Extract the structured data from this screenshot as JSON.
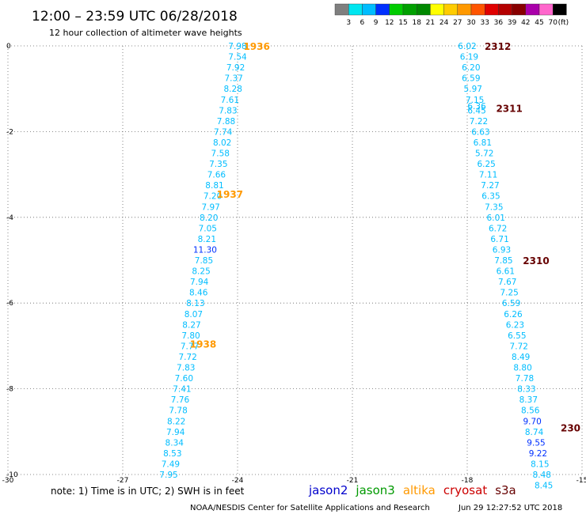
{
  "header": {
    "title": "12:00 – 23:59 UTC 06/28/2018",
    "subtitle": "12 hour collection of altimeter wave heights"
  },
  "colorbar": {
    "unit": "(ft)",
    "bins": [
      {
        "label": "",
        "color": "#7f7f7f"
      },
      {
        "label": "3",
        "color": "#00e6f0"
      },
      {
        "label": "6",
        "color": "#00bdff"
      },
      {
        "label": "9",
        "color": "#0030ff"
      },
      {
        "label": "12",
        "color": "#00cc00"
      },
      {
        "label": "15",
        "color": "#00a000"
      },
      {
        "label": "18",
        "color": "#008800"
      },
      {
        "label": "21",
        "color": "#ffff00"
      },
      {
        "label": "24",
        "color": "#ffcc00"
      },
      {
        "label": "27",
        "color": "#ff9900"
      },
      {
        "label": "30",
        "color": "#ff5500"
      },
      {
        "label": "33",
        "color": "#e00000"
      },
      {
        "label": "36",
        "color": "#b40000"
      },
      {
        "label": "39",
        "color": "#880000"
      },
      {
        "label": "42",
        "color": "#aa00aa"
      },
      {
        "label": "45",
        "color": "#ff66cc"
      },
      {
        "label": "70",
        "color": "#000000"
      }
    ]
  },
  "footer": {
    "note": "note: 1) Time is in UTC; 2) SWH is in feet",
    "credit": "NOAA/NESDIS Center for Satellite Applications and Research",
    "timestamp": "Jun 29 12:27:52 UTC 2018",
    "satellites": [
      {
        "name": "jason2",
        "color": "#0000cc"
      },
      {
        "name": "jason3",
        "color": "#009900"
      },
      {
        "name": "altika",
        "color": "#ff9900"
      },
      {
        "name": "cryosat",
        "color": "#cc0000"
      },
      {
        "name": "s3a",
        "color": "#660000"
      }
    ]
  },
  "chart_data": {
    "type": "scatter",
    "xlim": [
      -30,
      -15
    ],
    "ylim": [
      -10,
      0
    ],
    "xticks": [
      "-30",
      "-27",
      "-24",
      "-21",
      "-18",
      "-15"
    ],
    "yticks": [
      "0",
      "-2",
      "-4",
      "-6",
      "-8",
      "-10"
    ],
    "grid": true,
    "series": [
      {
        "name": "altika",
        "color": "#ff9900",
        "points": [
          {
            "x": -24.0,
            "y": 0.0,
            "label": "7.98"
          },
          {
            "x": -24.0,
            "y": -0.25,
            "label": "7.54"
          },
          {
            "x": -24.05,
            "y": -0.5,
            "label": "7.92"
          },
          {
            "x": -24.1,
            "y": -0.75,
            "label": "7.37"
          },
          {
            "x": -24.12,
            "y": -1.0,
            "label": "8.28"
          },
          {
            "x": -24.2,
            "y": -1.25,
            "label": "7.61"
          },
          {
            "x": -24.25,
            "y": -1.5,
            "label": "7.83"
          },
          {
            "x": -24.3,
            "y": -1.75,
            "label": "7.88"
          },
          {
            "x": -24.38,
            "y": -2.0,
            "label": "7.74"
          },
          {
            "x": -24.4,
            "y": -2.25,
            "label": "8.02"
          },
          {
            "x": -24.45,
            "y": -2.5,
            "label": "7.58"
          },
          {
            "x": -24.5,
            "y": -2.75,
            "label": "7.35"
          },
          {
            "x": -24.55,
            "y": -3.0,
            "label": "7.66"
          },
          {
            "x": -24.6,
            "y": -3.25,
            "label": "8.81"
          },
          {
            "x": -24.65,
            "y": -3.5,
            "label": "7.20"
          },
          {
            "x": -24.7,
            "y": -3.75,
            "label": "7.97"
          },
          {
            "x": -24.75,
            "y": -4.0,
            "label": "8.20"
          },
          {
            "x": -24.78,
            "y": -4.25,
            "label": "7.05"
          },
          {
            "x": -24.8,
            "y": -4.5,
            "label": "8.21"
          },
          {
            "x": -24.85,
            "y": -4.75,
            "label": "11.30"
          },
          {
            "x": -24.88,
            "y": -5.0,
            "label": "7.85"
          },
          {
            "x": -24.95,
            "y": -5.25,
            "label": "8.25"
          },
          {
            "x": -25.0,
            "y": -5.5,
            "label": "7.94"
          },
          {
            "x": -25.02,
            "y": -5.75,
            "label": "8.46"
          },
          {
            "x": -25.1,
            "y": -6.0,
            "label": "8.13"
          },
          {
            "x": -25.15,
            "y": -6.25,
            "label": "8.07"
          },
          {
            "x": -25.2,
            "y": -6.5,
            "label": "8.27"
          },
          {
            "x": -25.22,
            "y": -6.75,
            "label": "7.80"
          },
          {
            "x": -25.25,
            "y": -7.0,
            "label": "7.77"
          },
          {
            "x": -25.3,
            "y": -7.25,
            "label": "7.72"
          },
          {
            "x": -25.35,
            "y": -7.5,
            "label": "7.83"
          },
          {
            "x": -25.4,
            "y": -7.75,
            "label": "7.60"
          },
          {
            "x": -25.45,
            "y": -8.0,
            "label": "7.41"
          },
          {
            "x": -25.5,
            "y": -8.25,
            "label": "7.76"
          },
          {
            "x": -25.55,
            "y": -8.5,
            "label": "7.78"
          },
          {
            "x": -25.6,
            "y": -8.75,
            "label": "8.22"
          },
          {
            "x": -25.62,
            "y": -9.0,
            "label": "7.94"
          },
          {
            "x": -25.65,
            "y": -9.25,
            "label": "8.34"
          },
          {
            "x": -25.7,
            "y": -9.5,
            "label": "8.53"
          },
          {
            "x": -25.75,
            "y": -9.75,
            "label": "7.49"
          },
          {
            "x": -25.8,
            "y": -10.0,
            "label": "7.95"
          }
        ],
        "time_labels": [
          {
            "x": -23.5,
            "y": 0.0,
            "label": "1936"
          },
          {
            "x": -24.2,
            "y": -3.45,
            "label": "1937"
          },
          {
            "x": -24.9,
            "y": -6.95,
            "label": "1938"
          }
        ]
      },
      {
        "name": "s3a",
        "color": "#660000",
        "points": [
          {
            "x": -18.0,
            "y": 0.0,
            "label": "6.02"
          },
          {
            "x": -17.95,
            "y": -0.25,
            "label": "6.19"
          },
          {
            "x": -17.9,
            "y": -0.5,
            "label": "6.20"
          },
          {
            "x": -17.9,
            "y": -0.75,
            "label": "6.59"
          },
          {
            "x": -17.85,
            "y": -1.0,
            "label": "5.97"
          },
          {
            "x": -17.8,
            "y": -1.25,
            "label": "7.15"
          },
          {
            "x": -17.75,
            "y": -1.5,
            "label": "6.45"
          },
          {
            "x": -17.7,
            "y": -1.75,
            "label": "7.22"
          },
          {
            "x": -17.65,
            "y": -2.0,
            "label": "6.63"
          },
          {
            "x": -17.6,
            "y": -2.25,
            "label": "6.81"
          },
          {
            "x": -17.55,
            "y": -2.5,
            "label": "5.72"
          },
          {
            "x": -17.5,
            "y": -2.75,
            "label": "6.25"
          },
          {
            "x": -17.45,
            "y": -3.0,
            "label": "7.11"
          },
          {
            "x": -17.4,
            "y": -3.25,
            "label": "7.27"
          },
          {
            "x": -17.38,
            "y": -3.5,
            "label": "6.35"
          },
          {
            "x": -17.3,
            "y": -3.75,
            "label": "7.35"
          },
          {
            "x": -17.25,
            "y": -4.0,
            "label": "6.01"
          },
          {
            "x": -17.2,
            "y": -4.25,
            "label": "6.72"
          },
          {
            "x": -17.15,
            "y": -4.5,
            "label": "6.71"
          },
          {
            "x": -17.1,
            "y": -4.75,
            "label": "6.93"
          },
          {
            "x": -17.05,
            "y": -5.0,
            "label": "7.85"
          },
          {
            "x": -17.0,
            "y": -5.25,
            "label": "6.61"
          },
          {
            "x": -16.95,
            "y": -5.5,
            "label": "7.67"
          },
          {
            "x": -16.9,
            "y": -5.75,
            "label": "7.25"
          },
          {
            "x": -16.85,
            "y": -6.0,
            "label": "6.59"
          },
          {
            "x": -16.8,
            "y": -6.25,
            "label": "6.26"
          },
          {
            "x": -16.75,
            "y": -6.5,
            "label": "6.23"
          },
          {
            "x": -16.7,
            "y": -6.75,
            "label": "6.55"
          },
          {
            "x": -16.65,
            "y": -7.0,
            "label": "7.72"
          },
          {
            "x": -16.6,
            "y": -7.25,
            "label": "8.49"
          },
          {
            "x": -16.55,
            "y": -7.5,
            "label": "8.80"
          },
          {
            "x": -16.5,
            "y": -7.75,
            "label": "7.78"
          },
          {
            "x": -16.45,
            "y": -8.0,
            "label": "8.33"
          },
          {
            "x": -16.4,
            "y": -8.25,
            "label": "8.37"
          },
          {
            "x": -16.35,
            "y": -8.5,
            "label": "8.56"
          },
          {
            "x": -16.3,
            "y": -8.75,
            "label": "9.70"
          },
          {
            "x": -16.25,
            "y": -9.0,
            "label": "8.74"
          },
          {
            "x": -16.2,
            "y": -9.25,
            "label": "9.55"
          },
          {
            "x": -16.15,
            "y": -9.5,
            "label": "9.22"
          },
          {
            "x": -16.1,
            "y": -9.75,
            "label": "8.15"
          },
          {
            "x": -16.05,
            "y": -10.0,
            "label": "8.48"
          },
          {
            "x": -16.0,
            "y": -10.25,
            "label": "8.45"
          }
        ],
        "time_labels": [
          {
            "x": -17.2,
            "y": 0.0,
            "label": "2312"
          },
          {
            "x": -16.9,
            "y": -1.45,
            "label": "2311"
          },
          {
            "x": -16.2,
            "y": -5.0,
            "label": "2310"
          },
          {
            "x": -15.3,
            "y": -8.9,
            "label": "230"
          }
        ]
      },
      {
        "name": "s3a-extra",
        "color": "#660000",
        "points": [
          {
            "x": -17.75,
            "y": -1.4,
            "label": "6.36"
          }
        ],
        "time_labels": []
      }
    ]
  }
}
